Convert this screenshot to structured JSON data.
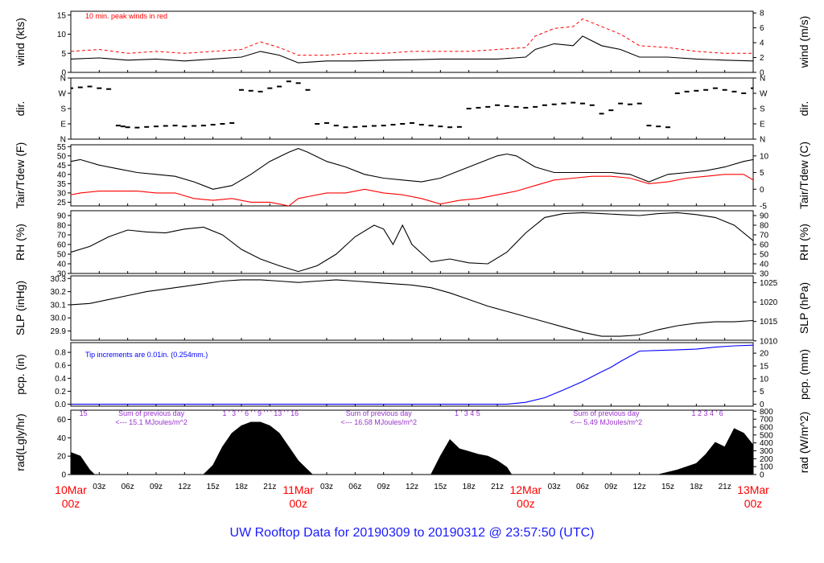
{
  "title": "UW Rooftop Data for 20190309  to  20190312 @ 23:57:50  (UTC)",
  "colors": {
    "black": "#000000",
    "red": "#ff0000",
    "blue": "#0000ff",
    "purple": "#9933cc",
    "title": "#1a1aff",
    "date": "#ff0000"
  },
  "time_axis": {
    "start_hour": 0,
    "end_hour": 72,
    "hour_ticks": [
      {
        "h": 3,
        "label": "03z"
      },
      {
        "h": 6,
        "label": "06z"
      },
      {
        "h": 9,
        "label": "09z"
      },
      {
        "h": 12,
        "label": "12z"
      },
      {
        "h": 15,
        "label": "15z"
      },
      {
        "h": 18,
        "label": "18z"
      },
      {
        "h": 21,
        "label": "21z"
      },
      {
        "h": 27,
        "label": "03z"
      },
      {
        "h": 30,
        "label": "06z"
      },
      {
        "h": 33,
        "label": "09z"
      },
      {
        "h": 36,
        "label": "12z"
      },
      {
        "h": 39,
        "label": "15z"
      },
      {
        "h": 42,
        "label": "18z"
      },
      {
        "h": 45,
        "label": "21z"
      },
      {
        "h": 51,
        "label": "03z"
      },
      {
        "h": 54,
        "label": "06z"
      },
      {
        "h": 57,
        "label": "09z"
      },
      {
        "h": 60,
        "label": "12z"
      },
      {
        "h": 63,
        "label": "15z"
      },
      {
        "h": 66,
        "label": "18z"
      },
      {
        "h": 69,
        "label": "21z"
      }
    ],
    "day_labels": [
      {
        "h": 0,
        "date": "10Mar",
        "hour": "00z"
      },
      {
        "h": 24,
        "date": "11Mar",
        "hour": "00z"
      },
      {
        "h": 48,
        "date": "12Mar",
        "hour": "00z"
      },
      {
        "h": 72,
        "date": "13Mar",
        "hour": "00z"
      }
    ]
  },
  "chart_data": [
    {
      "id": "wind",
      "type": "line",
      "ylabel_left": "wind (kts)",
      "ylabel_right": "wind (m/s)",
      "ylim": [
        0,
        16
      ],
      "yticks_left": [
        0,
        5,
        10,
        15
      ],
      "right_ylim": [
        0,
        8.23
      ],
      "yticks_right": [
        0,
        2,
        4,
        6,
        8
      ],
      "annotation": "10 min. peak winds in red",
      "series": [
        {
          "name": "wind speed",
          "color": "black",
          "x": [
            0,
            3,
            6,
            9,
            12,
            15,
            18,
            20,
            22,
            24,
            27,
            30,
            33,
            36,
            39,
            42,
            45,
            48,
            49,
            51,
            53,
            54,
            56,
            58,
            60,
            63,
            66,
            69,
            72
          ],
          "y": [
            3.5,
            3.8,
            3.2,
            3.5,
            3.0,
            3.5,
            4.0,
            5.5,
            4.5,
            2.5,
            3.0,
            3.0,
            3.2,
            3.3,
            3.5,
            3.5,
            3.5,
            4.0,
            6.0,
            7.5,
            7.0,
            9.5,
            7.0,
            6.0,
            4.0,
            4.0,
            3.5,
            3.2,
            3.0
          ]
        },
        {
          "name": "10 min. peak winds",
          "color": "red",
          "x": [
            0,
            3,
            6,
            9,
            12,
            15,
            18,
            20,
            22,
            24,
            27,
            30,
            33,
            36,
            39,
            42,
            45,
            48,
            49,
            51,
            53,
            54,
            56,
            58,
            60,
            63,
            66,
            69,
            72
          ],
          "y": [
            5.5,
            6.0,
            5.0,
            5.5,
            5.0,
            5.5,
            6.0,
            8.0,
            6.5,
            4.5,
            4.5,
            5.0,
            5.0,
            5.5,
            5.5,
            5.5,
            6.0,
            6.5,
            9.5,
            11.5,
            12.0,
            14.0,
            12.0,
            10.0,
            7.0,
            6.5,
            5.5,
            5.0,
            5.0
          ]
        }
      ]
    },
    {
      "id": "dir",
      "type": "scatter",
      "ylabel_left": "dir.",
      "ylabel_right": "dir.",
      "ylim": [
        0,
        360
      ],
      "dir_ticks": [
        {
          "v": 0,
          "label": "N"
        },
        {
          "v": 90,
          "label": "E"
        },
        {
          "v": 180,
          "label": "S"
        },
        {
          "v": 270,
          "label": "W"
        },
        {
          "v": 360,
          "label": "N"
        }
      ],
      "series": [
        {
          "name": "wind direction",
          "color": "black",
          "x": [
            0,
            1,
            2,
            3,
            4,
            5,
            5.5,
            6,
            7,
            8,
            9,
            10,
            11,
            12,
            13,
            14,
            15,
            16,
            17,
            18,
            19,
            20,
            21,
            22,
            23,
            24,
            25,
            26,
            27,
            28,
            29,
            30,
            31,
            32,
            33,
            34,
            35,
            36,
            37,
            38,
            39,
            40,
            41,
            42,
            43,
            44,
            45,
            46,
            47,
            48,
            49,
            50,
            51,
            52,
            53,
            54,
            55,
            56,
            57,
            58,
            59,
            60,
            61,
            62,
            63,
            64,
            65,
            66,
            67,
            68,
            69,
            70,
            71,
            72
          ],
          "y": [
            300,
            305,
            310,
            300,
            295,
            80,
            75,
            70,
            68,
            72,
            75,
            78,
            80,
            75,
            78,
            80,
            85,
            90,
            95,
            290,
            285,
            280,
            300,
            310,
            340,
            330,
            290,
            90,
            95,
            80,
            70,
            72,
            75,
            78,
            80,
            85,
            90,
            95,
            85,
            80,
            75,
            70,
            72,
            180,
            185,
            190,
            200,
            195,
            190,
            185,
            190,
            200,
            205,
            210,
            215,
            210,
            200,
            150,
            170,
            210,
            205,
            210,
            80,
            75,
            70,
            270,
            280,
            285,
            290,
            300,
            290,
            280,
            270,
            300
          ]
        }
      ]
    },
    {
      "id": "temp",
      "type": "line",
      "ylabel_left": "Tair/Tdew (F)",
      "ylabel_right": "Tair/Tdew (C)",
      "ylim": [
        23,
        56
      ],
      "yticks_left": [
        25,
        30,
        35,
        40,
        45,
        50,
        55
      ],
      "yticks_right_c": [
        -5,
        0,
        5,
        10
      ],
      "series": [
        {
          "name": "Tair",
          "color": "black",
          "x": [
            0,
            1,
            3,
            5,
            7,
            9,
            11,
            13,
            15,
            17,
            19,
            21,
            23,
            24,
            25,
            27,
            29,
            31,
            33,
            35,
            37,
            39,
            41,
            43,
            45,
            46,
            47,
            49,
            51,
            53,
            55,
            57,
            59,
            61,
            63,
            65,
            67,
            69,
            71,
            72
          ],
          "y": [
            47,
            48,
            45,
            43,
            41,
            40,
            39,
            36,
            32,
            34,
            40,
            47,
            52,
            54,
            52,
            47,
            44,
            40,
            38,
            37,
            36,
            38,
            42,
            46,
            50,
            51,
            50,
            44,
            41,
            41,
            41,
            41,
            40,
            36,
            40,
            41,
            42,
            44,
            47,
            48
          ]
        },
        {
          "name": "Tdew",
          "color": "red",
          "x": [
            0,
            1,
            3,
            5,
            7,
            9,
            11,
            13,
            15,
            17,
            19,
            21,
            23,
            24,
            25,
            27,
            29,
            31,
            33,
            35,
            37,
            39,
            41,
            43,
            45,
            46,
            47,
            49,
            51,
            53,
            55,
            57,
            59,
            61,
            63,
            65,
            67,
            69,
            71,
            72
          ],
          "y": [
            29,
            30,
            31,
            31,
            31,
            30,
            30,
            27,
            26,
            27,
            25,
            25,
            23,
            27,
            28,
            30,
            30,
            32,
            30,
            29,
            27,
            24,
            26,
            27,
            29,
            30,
            31,
            34,
            37,
            38,
            39,
            39,
            38,
            35,
            36,
            38,
            39,
            40,
            40,
            37
          ]
        }
      ]
    },
    {
      "id": "rh",
      "type": "line",
      "ylabel_left": "RH (%)",
      "ylabel_right": "RH (%)",
      "ylim": [
        30,
        95
      ],
      "yticks_left": [
        30,
        40,
        50,
        60,
        70,
        80,
        90
      ],
      "series": [
        {
          "name": "RH",
          "color": "black",
          "x": [
            0,
            2,
            4,
            6,
            8,
            10,
            12,
            14,
            16,
            18,
            20,
            22,
            24,
            26,
            28,
            30,
            32,
            33,
            34,
            35,
            36,
            38,
            40,
            42,
            44,
            46,
            48,
            50,
            52,
            54,
            56,
            58,
            60,
            62,
            64,
            66,
            68,
            70,
            72
          ],
          "y": [
            52,
            58,
            68,
            75,
            73,
            72,
            76,
            78,
            70,
            55,
            45,
            38,
            32,
            38,
            50,
            68,
            80,
            76,
            60,
            80,
            60,
            42,
            45,
            41,
            40,
            52,
            72,
            88,
            92,
            93,
            92,
            91,
            90,
            92,
            93,
            91,
            88,
            80,
            64
          ]
        }
      ]
    },
    {
      "id": "slp",
      "type": "line",
      "ylabel_left": "SLP (inHg)",
      "ylabel_right": "SLP (hPa)",
      "ylim": [
        29.83,
        30.32
      ],
      "yticks_left": [
        29.9,
        30.0,
        30.1,
        30.2,
        30.3
      ],
      "yticks_right_hpa": [
        1010,
        1015,
        1020,
        1025
      ],
      "series": [
        {
          "name": "SLP",
          "color": "black",
          "x": [
            0,
            2,
            4,
            6,
            8,
            10,
            12,
            14,
            16,
            18,
            20,
            22,
            24,
            26,
            28,
            30,
            32,
            34,
            36,
            38,
            40,
            42,
            44,
            46,
            48,
            50,
            52,
            54,
            56,
            58,
            60,
            62,
            64,
            66,
            68,
            70,
            72
          ],
          "y": [
            30.1,
            30.11,
            30.14,
            30.17,
            30.2,
            30.22,
            30.24,
            30.26,
            30.28,
            30.29,
            30.29,
            30.28,
            30.27,
            30.28,
            30.29,
            30.28,
            30.27,
            30.26,
            30.25,
            30.23,
            30.19,
            30.14,
            30.09,
            30.05,
            30.01,
            29.97,
            29.93,
            29.89,
            29.86,
            29.86,
            29.87,
            29.91,
            29.94,
            29.96,
            29.97,
            29.97,
            29.98
          ]
        }
      ]
    },
    {
      "id": "pcp",
      "type": "line",
      "ylabel_left": "pcp. (in)",
      "ylabel_right": "pcp. (mm)",
      "ylim": [
        -0.03,
        0.95
      ],
      "yticks_left": [
        0.0,
        0.2,
        0.4,
        0.6,
        0.8
      ],
      "yticks_right_mm": [
        0,
        5,
        10,
        15,
        20
      ],
      "annotation": "Tip increments are 0.01in. (0.254mm.)",
      "series": [
        {
          "name": "precip",
          "color": "blue",
          "x": [
            0,
            46,
            48,
            50,
            52,
            54,
            56,
            57,
            58,
            60,
            62,
            64,
            66,
            68,
            70,
            72
          ],
          "y": [
            0,
            0,
            0.03,
            0.1,
            0.22,
            0.35,
            0.5,
            0.57,
            0.66,
            0.82,
            0.83,
            0.84,
            0.85,
            0.88,
            0.9,
            0.91
          ]
        }
      ]
    },
    {
      "id": "rad",
      "type": "area",
      "ylabel_left": "rad(Lgly/hr)",
      "ylabel_right": "rad (W/m^2)",
      "ylim": [
        0,
        70
      ],
      "yticks_left": [
        0,
        20,
        40,
        60
      ],
      "yticks_right_wm2": [
        0,
        100,
        200,
        300,
        400,
        500,
        600,
        700,
        800
      ],
      "day_summaries": [
        {
          "h": 8.5,
          "line1": "Sum of previous day",
          "line2": "<--- 15.1 MJoules/m^2"
        },
        {
          "h": 32.5,
          "line1": "Sum of previous day",
          "line2": "<--- 16.58 MJoules/m^2"
        },
        {
          "h": 56.5,
          "line1": "Sum of previous day",
          "line2": "<--- 5.49 MJoules/m^2"
        }
      ],
      "hour_marks": [
        {
          "h": 0.9,
          "label": "15"
        },
        {
          "h": 16,
          "label": "1 ' 3 ' ' 6 ' ' 9 ' ' ' 13 ' ' 16"
        },
        {
          "h": 40.5,
          "label": "1 ' 3 4 5"
        },
        {
          "h": 65.5,
          "label": "1 2 3 4 ' 6"
        }
      ],
      "series": [
        {
          "name": "radiation",
          "color": "black",
          "x": [
            0,
            1,
            2,
            2.5,
            14,
            15,
            16,
            17,
            18,
            19,
            20,
            21,
            22,
            23,
            24,
            25,
            25.5,
            38,
            39,
            40,
            41,
            42,
            43,
            44,
            45,
            46,
            46.5,
            62,
            64,
            66,
            67,
            68,
            69,
            70,
            71,
            72
          ],
          "y": [
            24,
            20,
            5,
            0,
            0,
            10,
            30,
            45,
            53,
            57,
            57,
            53,
            45,
            30,
            15,
            5,
            0,
            0,
            20,
            38,
            28,
            25,
            22,
            20,
            15,
            8,
            0,
            0,
            5,
            12,
            22,
            35,
            30,
            50,
            45,
            32
          ]
        }
      ]
    }
  ]
}
